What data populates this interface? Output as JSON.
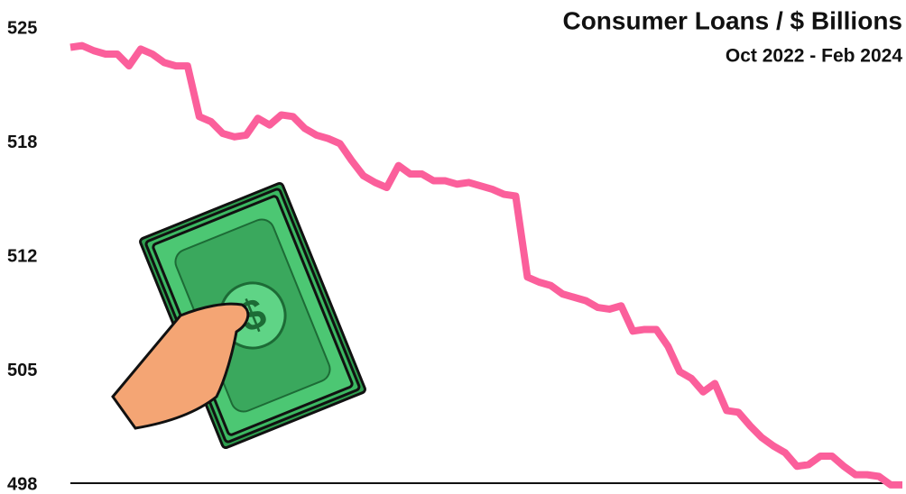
{
  "chart_data": {
    "type": "line",
    "title": "Consumer Loans / $ Billions",
    "subtitle": "Oct 2022 - Feb 2024",
    "series": [
      {
        "color": "#fb5f9b",
        "values": [
          523.8,
          523.9,
          523.6,
          523.4,
          523.4,
          522.7,
          523.7,
          523.4,
          522.9,
          522.7,
          522.7,
          519.7,
          519.4,
          518.7,
          518.5,
          518.6,
          519.6,
          519.2,
          519.8,
          519.7,
          519.0,
          518.6,
          518.4,
          518.1,
          517.1,
          516.2,
          515.8,
          515.5,
          516.8,
          516.3,
          516.3,
          515.9,
          515.9,
          515.7,
          515.8,
          515.6,
          515.4,
          515.1,
          515.0,
          510.2,
          509.9,
          509.7,
          509.2,
          509.0,
          508.8,
          508.4,
          508.3,
          508.5,
          507.0,
          507.1,
          507.1,
          506.1,
          504.6,
          504.2,
          503.4,
          503.9,
          502.3,
          502.2,
          501.4,
          500.7,
          500.2,
          499.8,
          499.0,
          499.1,
          499.6,
          499.6,
          499.0,
          498.5,
          498.5,
          498.4,
          497.9,
          497.9
        ]
      }
    ],
    "ylim": [
      498,
      525
    ],
    "yticks": [
      498,
      {
        "value": 504.75,
        "label": "505"
      },
      {
        "value": 511.5,
        "label": "512"
      },
      {
        "value": 518.25,
        "label": "518"
      },
      525
    ]
  }
}
